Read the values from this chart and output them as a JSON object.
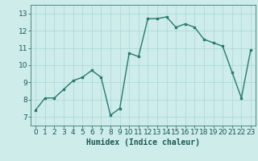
{
  "x": [
    0,
    1,
    2,
    3,
    4,
    5,
    6,
    7,
    8,
    9,
    10,
    11,
    12,
    13,
    14,
    15,
    16,
    17,
    18,
    19,
    20,
    21,
    22,
    23
  ],
  "y": [
    7.4,
    8.1,
    8.1,
    8.6,
    9.1,
    9.3,
    9.7,
    9.3,
    7.1,
    7.5,
    10.7,
    10.5,
    12.7,
    12.7,
    12.8,
    12.2,
    12.4,
    12.2,
    11.5,
    11.3,
    11.1,
    9.6,
    8.1,
    10.9
  ],
  "line_color": "#2a7a6f",
  "marker": "s",
  "markersize": 2,
  "linewidth": 1.0,
  "bg_color": "#cdecea",
  "grid_color": "#a8d8d5",
  "xlabel": "Humidex (Indice chaleur)",
  "xlim": [
    -0.5,
    23.5
  ],
  "ylim": [
    6.5,
    13.5
  ],
  "yticks": [
    7,
    8,
    9,
    10,
    11,
    12,
    13
  ],
  "xticks": [
    0,
    1,
    2,
    3,
    4,
    5,
    6,
    7,
    8,
    9,
    10,
    11,
    12,
    13,
    14,
    15,
    16,
    17,
    18,
    19,
    20,
    21,
    22,
    23
  ],
  "xlabel_fontsize": 7,
  "tick_fontsize": 6.5
}
